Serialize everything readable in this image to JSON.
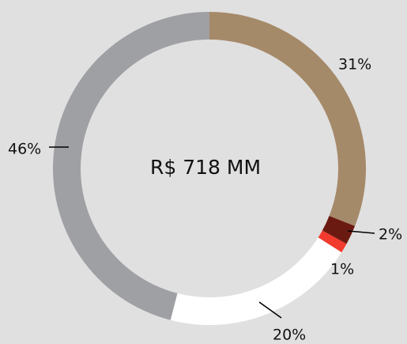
{
  "chart_data": {
    "type": "pie",
    "donut": true,
    "center_text": "R$ 718 MM",
    "values": [
      31,
      2,
      1,
      20,
      46
    ],
    "value_labels": [
      "31%",
      "2%",
      "1%",
      "20%",
      "46%"
    ],
    "colors": [
      "#a58a6a",
      "#6b1a12",
      "#f23b2e",
      "#ffffff",
      "#9fa0a3"
    ]
  }
}
